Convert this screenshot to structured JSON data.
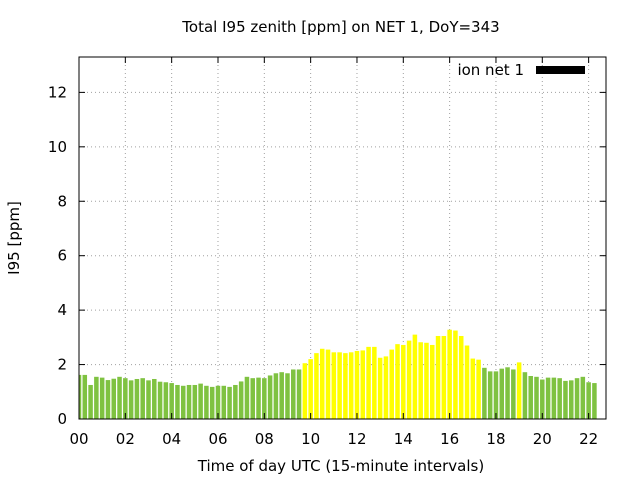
{
  "chart_data": {
    "type": "bar",
    "title": "Total I95 zenith [ppm] on NET 1, DoY=343",
    "xlabel": "Time of day UTC (15-minute intervals)",
    "ylabel": "I95 [ppm]",
    "xlim": [
      0,
      22.75
    ],
    "ylim": [
      0,
      13.3
    ],
    "x_ticks": [
      "00",
      "02",
      "04",
      "06",
      "08",
      "10",
      "12",
      "14",
      "16",
      "18",
      "20",
      "22"
    ],
    "y_ticks": [
      "0",
      "2",
      "4",
      "6",
      "8",
      "10",
      "12"
    ],
    "grid": true,
    "legend": {
      "label": "ion net 1",
      "position": "top-right",
      "color": "#000000"
    },
    "colors": {
      "low": "#7fc241",
      "high": "#ffff00"
    },
    "interval_hours": 0.25,
    "values": [
      1.62,
      1.62,
      1.25,
      1.55,
      1.52,
      1.43,
      1.48,
      1.55,
      1.5,
      1.42,
      1.47,
      1.5,
      1.42,
      1.47,
      1.37,
      1.35,
      1.32,
      1.25,
      1.22,
      1.25,
      1.25,
      1.3,
      1.22,
      1.18,
      1.22,
      1.22,
      1.18,
      1.25,
      1.38,
      1.55,
      1.5,
      1.52,
      1.5,
      1.6,
      1.68,
      1.72,
      1.68,
      1.82,
      1.82,
      2.05,
      2.2,
      2.42,
      2.58,
      2.55,
      2.45,
      2.45,
      2.42,
      2.45,
      2.5,
      2.52,
      2.65,
      2.65,
      2.25,
      2.3,
      2.55,
      2.75,
      2.72,
      2.88,
      3.1,
      2.82,
      2.8,
      2.72,
      3.05,
      3.05,
      3.28,
      3.25,
      3.05,
      2.7,
      2.22,
      2.18,
      1.88,
      1.75,
      1.75,
      1.85,
      1.9,
      1.82,
      2.08,
      1.72,
      1.58,
      1.55,
      1.45,
      1.52,
      1.52,
      1.5,
      1.4,
      1.42,
      1.5,
      1.55,
      1.35,
      1.32
    ],
    "flags": [
      0,
      0,
      0,
      0,
      0,
      0,
      0,
      0,
      0,
      0,
      0,
      0,
      0,
      0,
      0,
      0,
      0,
      0,
      0,
      0,
      0,
      0,
      0,
      0,
      0,
      0,
      0,
      0,
      0,
      0,
      0,
      0,
      0,
      0,
      0,
      0,
      0,
      0,
      0,
      1,
      1,
      1,
      1,
      1,
      1,
      1,
      1,
      1,
      1,
      1,
      1,
      1,
      1,
      1,
      1,
      1,
      1,
      1,
      1,
      1,
      1,
      1,
      1,
      1,
      1,
      1,
      1,
      1,
      1,
      1,
      0,
      0,
      0,
      0,
      0,
      0,
      1,
      0,
      0,
      0,
      0,
      0,
      0,
      0,
      0,
      0,
      0,
      0,
      0,
      0
    ]
  }
}
